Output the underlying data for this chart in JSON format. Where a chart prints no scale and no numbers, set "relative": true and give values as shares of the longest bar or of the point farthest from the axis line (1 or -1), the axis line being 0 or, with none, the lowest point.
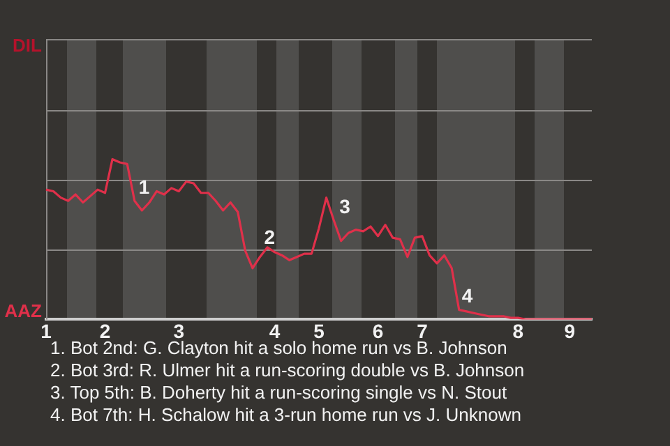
{
  "chart_data": {
    "type": "line",
    "relative": true,
    "categories": [
      "1",
      null,
      null,
      null,
      null,
      null,
      null,
      null,
      "2",
      null,
      null,
      null,
      null,
      null,
      null,
      null,
      null,
      null,
      "3",
      null,
      null,
      null,
      null,
      null,
      null,
      null,
      null,
      null,
      null,
      null,
      null,
      "4",
      null,
      null,
      null,
      null,
      null,
      "5",
      null,
      null,
      null,
      null,
      null,
      null,
      null,
      "6",
      null,
      null,
      null,
      null,
      null,
      "7",
      null,
      null,
      null,
      null,
      null,
      null,
      null,
      null,
      null,
      null,
      null,
      null,
      "8",
      null,
      null,
      null,
      null,
      null,
      null,
      "9",
      null,
      null,
      null
    ],
    "series": [
      {
        "color": "#e0304a",
        "values": [
          0.81,
          0.8,
          0.76,
          0.74,
          0.78,
          0.73,
          0.77,
          0.81,
          0.79,
          1,
          0.98,
          0.97,
          0.74,
          0.68,
          0.73,
          0.8,
          0.78,
          0.82,
          0.8,
          0.86,
          0.85,
          0.79,
          0.79,
          0.74,
          0.68,
          0.73,
          0.67,
          0.43,
          0.32,
          0.39,
          0.45,
          0.42,
          0.4,
          0.37,
          0.39,
          0.41,
          0.41,
          0.57,
          0.76,
          0.62,
          0.49,
          0.54,
          0.56,
          0.55,
          0.58,
          0.52,
          0.59,
          0.51,
          0.5,
          0.39,
          0.51,
          0.52,
          0.4,
          0.35,
          0.4,
          0.32,
          0.06,
          0.05,
          0.04,
          0.03,
          0.02,
          0.02,
          0.02,
          0.01,
          0.01,
          0,
          0,
          0,
          0,
          0,
          0,
          0,
          0,
          0,
          0
        ]
      }
    ],
    "ref_lines": [
      {
        "axis": "y",
        "value": 0.44,
        "color": "#8a8886"
      },
      {
        "axis": "y",
        "value": 0.87,
        "color": "#8a8886"
      },
      {
        "axis": "y",
        "value": 1.31,
        "color": "#8a8886"
      },
      {
        "axis": "y",
        "value": 1.75,
        "color": "#8a8886"
      }
    ],
    "marker": "none",
    "line_style": "solid",
    "annotations": [
      "DIL",
      "AAZ",
      "1",
      "2",
      "3",
      "4",
      "1. Bot 2nd: G. Clayton hit a solo home run vs B. Johnson",
      "2. Bot 3rd: R. Ulmer hit a run-scoring double vs B. Johnson",
      "3. Top 5th: B. Doherty hit a run-scoring single vs N. Stout",
      "4. Bot 7th: H. Schalow hit a 3-run home run vs J. Unknown"
    ]
  }
}
